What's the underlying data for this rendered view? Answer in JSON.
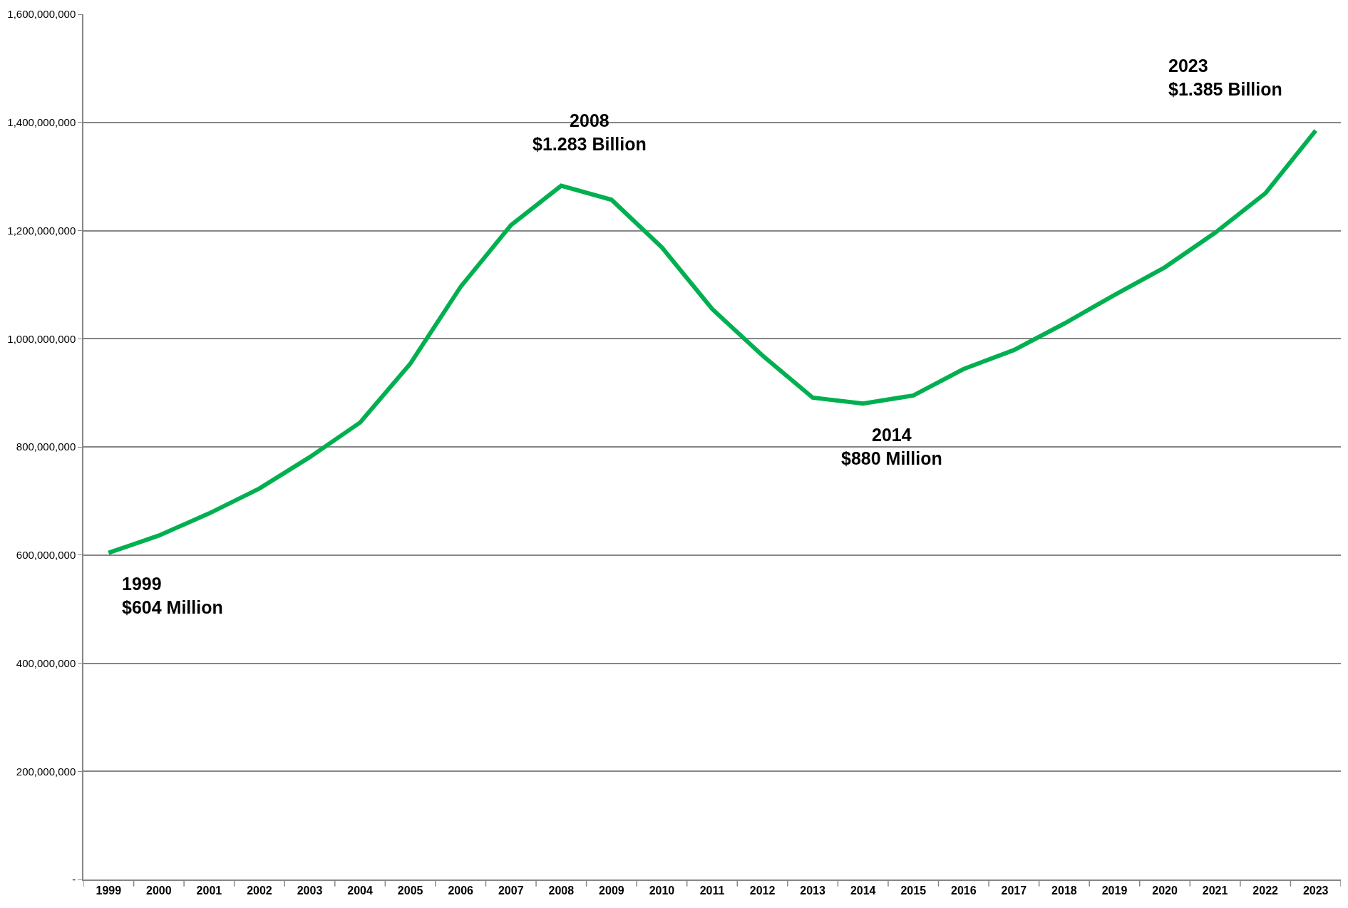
{
  "chart_data": {
    "type": "line",
    "categories": [
      "1999",
      "2000",
      "2001",
      "2002",
      "2003",
      "2004",
      "2005",
      "2006",
      "2007",
      "2008",
      "2009",
      "2010",
      "2011",
      "2012",
      "2013",
      "2014",
      "2015",
      "2016",
      "2017",
      "2018",
      "2019",
      "2020",
      "2021",
      "2022",
      "2023"
    ],
    "series": [
      {
        "color": "#00b050",
        "values": [
          604000000,
          636000000,
          677000000,
          723000000,
          781000000,
          845000000,
          954000000,
          1096000000,
          1210000000,
          1283000000,
          1257000000,
          1169000000,
          1055000000,
          969000000,
          891000000,
          880000000,
          895000000,
          944000000,
          979000000,
          1028000000,
          1081000000,
          1132000000,
          1196000000,
          1269000000,
          1385000000
        ]
      }
    ],
    "ylim": [
      0,
      1600000000
    ],
    "yticks": [
      {
        "value": 0,
        "label": "-"
      },
      {
        "value": 200000000,
        "label": "200,000,000"
      },
      {
        "value": 400000000,
        "label": "400,000,000"
      },
      {
        "value": 600000000,
        "label": "600,000,000"
      },
      {
        "value": 800000000,
        "label": "800,000,000"
      },
      {
        "value": 1000000000,
        "label": "1,000,000,000"
      },
      {
        "value": 1200000000,
        "label": "1,200,000,000"
      },
      {
        "value": 1400000000,
        "label": "1,400,000,000"
      },
      {
        "value": 1600000000,
        "label": "1,600,000,000"
      }
    ],
    "grid": "y",
    "marker": "none",
    "line_style": "solid",
    "annotations": [
      {
        "text": "1999\n$604 Million",
        "x": "1999",
        "y": 604000000
      },
      {
        "text": "2008\n$1.283 Billion",
        "x": "2008",
        "y": 1283000000
      },
      {
        "text": "2014\n$880 Million",
        "x": "2014",
        "y": 880000000
      },
      {
        "text": "2023\n$1.385 Billion",
        "x": "2023",
        "y": 1385000000
      }
    ]
  }
}
